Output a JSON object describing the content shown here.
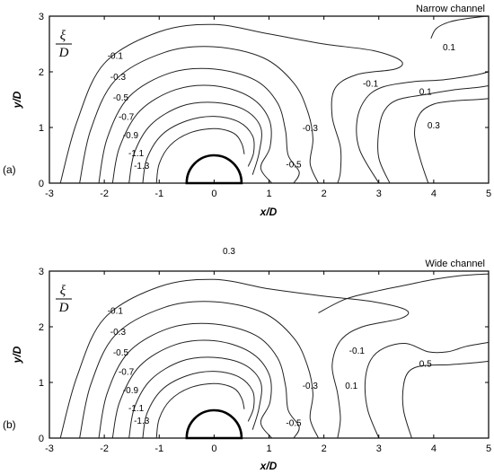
{
  "chart_data": [
    {
      "type": "contour",
      "panel": "(a)",
      "title": "Narrow channel",
      "quantity": {
        "numerator": "ξ",
        "denominator": "D"
      },
      "xlabel": "x/D",
      "ylabel": "y/D",
      "xlim": [
        -3,
        5
      ],
      "ylim": [
        0,
        3
      ],
      "xticks": [
        "-3",
        "-2",
        "-1",
        "0",
        "1",
        "2",
        "3",
        "4",
        "5"
      ],
      "yticks": [
        "0",
        "1",
        "2",
        "3"
      ],
      "cylinder": {
        "center": [
          0,
          0
        ],
        "radius": 0.5
      },
      "contours": [
        {
          "level": "-1.3",
          "label_at": [
            -1.32,
            0.32
          ],
          "points": [
            [
              -1.05,
              0
            ],
            [
              -1.0,
              0.35
            ],
            [
              -0.8,
              0.68
            ],
            [
              -0.45,
              0.9
            ],
            [
              0,
              0.98
            ],
            [
              0.35,
              0.9
            ],
            [
              0.5,
              0.72
            ],
            [
              0.55,
              0.52
            ]
          ]
        },
        {
          "level": "-1.1",
          "label_at": [
            -1.42,
            0.55
          ],
          "points": [
            [
              -1.3,
              0
            ],
            [
              -1.22,
              0.45
            ],
            [
              -0.95,
              0.87
            ],
            [
              -0.5,
              1.12
            ],
            [
              0,
              1.2
            ],
            [
              0.45,
              1.1
            ],
            [
              0.7,
              0.85
            ],
            [
              0.72,
              0.55
            ],
            [
              0.62,
              0.3
            ]
          ]
        },
        {
          "level": "-0.9",
          "label_at": [
            -1.52,
            0.87
          ],
          "points": [
            [
              -1.55,
              0
            ],
            [
              -1.45,
              0.55
            ],
            [
              -1.15,
              1.05
            ],
            [
              -0.6,
              1.38
            ],
            [
              0,
              1.45
            ],
            [
              0.55,
              1.32
            ],
            [
              0.85,
              1.0
            ],
            [
              0.82,
              0.55
            ],
            [
              0.7,
              0.15
            ]
          ]
        },
        {
          "level": "-0.7",
          "label_at": [
            -1.6,
            1.2
          ],
          "points": [
            [
              -1.85,
              0
            ],
            [
              -1.72,
              0.65
            ],
            [
              -1.35,
              1.3
            ],
            [
              -0.7,
              1.68
            ],
            [
              0,
              1.75
            ],
            [
              0.65,
              1.55
            ],
            [
              1.0,
              1.15
            ],
            [
              1.02,
              0.65
            ],
            [
              0.85,
              0.28
            ],
            [
              1.05,
              0
            ]
          ]
        },
        {
          "level": "-0.5",
          "label_at": [
            -1.7,
            1.55
          ],
          "points": [
            [
              -2.1,
              0
            ],
            [
              -1.95,
              0.8
            ],
            [
              -1.55,
              1.55
            ],
            [
              -0.8,
              1.98
            ],
            [
              0,
              2.05
            ],
            [
              0.75,
              1.85
            ],
            [
              1.15,
              1.45
            ],
            [
              1.3,
              0.95
            ],
            [
              1.35,
              0.5
            ],
            [
              1.55,
              0.2
            ],
            [
              1.45,
              0
            ]
          ]
        },
        {
          "level": "-0.3",
          "label_at": [
            -1.75,
            1.92
          ],
          "points": [
            [
              -2.45,
              0
            ],
            [
              -2.25,
              0.95
            ],
            [
              -1.8,
              1.85
            ],
            [
              -0.9,
              2.35
            ],
            [
              0,
              2.45
            ],
            [
              0.9,
              2.25
            ],
            [
              1.45,
              1.8
            ],
            [
              1.7,
              1.3
            ],
            [
              1.8,
              0.8
            ],
            [
              1.75,
              0.35
            ],
            [
              1.9,
              0
            ]
          ]
        },
        {
          "level": "-0.1",
          "label_at": [
            -1.8,
            2.3
          ],
          "points": [
            [
              -2.8,
              0
            ],
            [
              -2.5,
              1.1
            ],
            [
              -2.0,
              2.15
            ],
            [
              -1.0,
              2.72
            ],
            [
              0,
              2.85
            ],
            [
              1.0,
              2.68
            ],
            [
              2.0,
              2.5
            ],
            [
              2.9,
              2.38
            ],
            [
              3.4,
              2.2
            ],
            [
              3.3,
              2.05
            ],
            [
              2.6,
              1.95
            ],
            [
              2.2,
              1.7
            ],
            [
              2.15,
              1.2
            ],
            [
              2.3,
              0.65
            ],
            [
              2.3,
              0.2
            ],
            [
              2.25,
              0
            ]
          ]
        },
        {
          "level": "-0.1",
          "label_at": [
            2.85,
            1.8
          ],
          "points": [
            [
              3.0,
              0
            ],
            [
              2.65,
              0.6
            ],
            [
              2.6,
              1.1
            ],
            [
              2.75,
              1.5
            ],
            [
              3.05,
              1.72
            ],
            [
              3.6,
              1.82
            ],
            [
              4.1,
              1.85
            ],
            [
              4.5,
              1.9
            ],
            [
              4.8,
              1.95
            ],
            [
              5,
              2.0
            ]
          ]
        },
        {
          "level": "0.1",
          "label_at": [
            3.85,
            1.65
          ],
          "points": [
            [
              3.2,
              0
            ],
            [
              3.0,
              0.45
            ],
            [
              3.0,
              0.95
            ],
            [
              3.1,
              1.3
            ],
            [
              3.35,
              1.5
            ],
            [
              3.9,
              1.6
            ],
            [
              4.4,
              1.68
            ],
            [
              4.8,
              1.72
            ],
            [
              5,
              1.75
            ]
          ]
        },
        {
          "level": "0.3",
          "label_at": [
            4.0,
            1.05
          ],
          "points": [
            [
              3.9,
              0
            ],
            [
              3.75,
              0.45
            ],
            [
              3.65,
              0.9
            ],
            [
              3.75,
              1.25
            ],
            [
              4.0,
              1.42
            ],
            [
              4.4,
              1.48
            ],
            [
              4.75,
              1.5
            ],
            [
              5,
              1.52
            ]
          ]
        },
        {
          "level": "0.1",
          "label_at": [
            4.28,
            2.45
          ],
          "points": [
            [
              3.95,
              2.6
            ],
            [
              4.05,
              2.78
            ],
            [
              4.3,
              2.9
            ],
            [
              4.7,
              2.97
            ],
            [
              5,
              3.0
            ]
          ]
        },
        {
          "level": "-0.3",
          "label_at": [
            1.75,
            1.0
          ],
          "points": []
        },
        {
          "level": "-0.5",
          "label_at": [
            1.45,
            0.35
          ],
          "points": []
        }
      ]
    },
    {
      "type": "contour",
      "panel": "(b)",
      "title": "Wide channel",
      "quantity": {
        "numerator": "ξ",
        "denominator": "D"
      },
      "xlabel": "x/D",
      "ylabel": "y/D",
      "xlim": [
        -3,
        5
      ],
      "ylim": [
        0,
        3
      ],
      "xticks": [
        "-3",
        "-2",
        "-1",
        "0",
        "1",
        "2",
        "3",
        "4",
        "5"
      ],
      "yticks": [
        "0",
        "1",
        "2",
        "3"
      ],
      "cylinder": {
        "center": [
          0,
          0
        ],
        "radius": 0.5
      },
      "contours": [
        {
          "level": "-1.3",
          "label_at": [
            -1.32,
            0.32
          ],
          "points": [
            [
              -1.05,
              0
            ],
            [
              -1.0,
              0.35
            ],
            [
              -0.8,
              0.68
            ],
            [
              -0.45,
              0.9
            ],
            [
              0,
              0.98
            ],
            [
              0.35,
              0.9
            ],
            [
              0.5,
              0.72
            ],
            [
              0.55,
              0.52
            ]
          ]
        },
        {
          "level": "-1.1",
          "label_at": [
            -1.42,
            0.55
          ],
          "points": [
            [
              -1.3,
              0
            ],
            [
              -1.22,
              0.45
            ],
            [
              -0.95,
              0.87
            ],
            [
              -0.5,
              1.12
            ],
            [
              0,
              1.2
            ],
            [
              0.45,
              1.1
            ],
            [
              0.7,
              0.85
            ],
            [
              0.72,
              0.55
            ],
            [
              0.62,
              0.3
            ]
          ]
        },
        {
          "level": "-0.9",
          "label_at": [
            -1.52,
            0.87
          ],
          "points": [
            [
              -1.55,
              0
            ],
            [
              -1.45,
              0.55
            ],
            [
              -1.15,
              1.05
            ],
            [
              -0.6,
              1.38
            ],
            [
              0,
              1.45
            ],
            [
              0.55,
              1.32
            ],
            [
              0.85,
              1.0
            ],
            [
              0.82,
              0.55
            ],
            [
              0.7,
              0.15
            ]
          ]
        },
        {
          "level": "-0.7",
          "label_at": [
            -1.6,
            1.2
          ],
          "points": [
            [
              -1.85,
              0
            ],
            [
              -1.72,
              0.65
            ],
            [
              -1.35,
              1.3
            ],
            [
              -0.7,
              1.68
            ],
            [
              0,
              1.75
            ],
            [
              0.65,
              1.55
            ],
            [
              1.0,
              1.15
            ],
            [
              1.02,
              0.65
            ],
            [
              0.85,
              0.28
            ],
            [
              1.05,
              0
            ]
          ]
        },
        {
          "level": "-0.5",
          "label_at": [
            -1.7,
            1.55
          ],
          "points": [
            [
              -2.1,
              0
            ],
            [
              -1.95,
              0.8
            ],
            [
              -1.55,
              1.55
            ],
            [
              -0.8,
              1.98
            ],
            [
              0,
              2.05
            ],
            [
              0.75,
              1.85
            ],
            [
              1.15,
              1.45
            ],
            [
              1.3,
              0.95
            ],
            [
              1.35,
              0.5
            ],
            [
              1.55,
              0.2
            ],
            [
              1.45,
              0
            ]
          ]
        },
        {
          "level": "-0.3",
          "label_at": [
            -1.75,
            1.92
          ],
          "points": [
            [
              -2.45,
              0
            ],
            [
              -2.25,
              0.95
            ],
            [
              -1.8,
              1.85
            ],
            [
              -0.9,
              2.35
            ],
            [
              0,
              2.45
            ],
            [
              0.9,
              2.25
            ],
            [
              1.45,
              1.8
            ],
            [
              1.7,
              1.3
            ],
            [
              1.8,
              0.8
            ],
            [
              1.75,
              0.35
            ],
            [
              1.9,
              0
            ]
          ]
        },
        {
          "level": "-0.1",
          "label_at": [
            -1.8,
            2.3
          ],
          "points": [
            [
              -2.8,
              0
            ],
            [
              -2.5,
              1.1
            ],
            [
              -2.0,
              2.15
            ],
            [
              -1.0,
              2.72
            ],
            [
              0,
              2.85
            ],
            [
              1.0,
              2.68
            ],
            [
              2.0,
              2.55
            ],
            [
              2.9,
              2.45
            ],
            [
              3.5,
              2.3
            ],
            [
              3.4,
              2.15
            ],
            [
              2.7,
              2.0
            ],
            [
              2.3,
              1.75
            ],
            [
              2.15,
              1.3
            ],
            [
              2.25,
              0.8
            ],
            [
              2.3,
              0.35
            ],
            [
              2.25,
              0
            ]
          ]
        },
        {
          "level": "0.1",
          "label_at": [
            2.5,
            0.95
          ],
          "points": [
            [
              3.0,
              0
            ],
            [
              2.8,
              0.5
            ],
            [
              2.75,
              1.0
            ],
            [
              2.85,
              1.4
            ],
            [
              3.1,
              1.62
            ],
            [
              3.5,
              1.7
            ],
            [
              3.9,
              1.55
            ],
            [
              4.25,
              1.55
            ],
            [
              4.6,
              1.65
            ],
            [
              5,
              1.72
            ]
          ]
        },
        {
          "level": "0.5",
          "label_at": [
            3.85,
            1.35
          ],
          "points": [
            [
              3.6,
              0
            ],
            [
              3.45,
              0.5
            ],
            [
              3.45,
              0.95
            ],
            [
              3.55,
              1.2
            ],
            [
              3.8,
              1.3
            ],
            [
              4.3,
              1.32
            ],
            [
              4.7,
              1.35
            ],
            [
              5,
              1.38
            ]
          ]
        },
        {
          "level": "",
          "label_at": null,
          "points": [
            [
              1.9,
              2.25
            ],
            [
              2.4,
              2.5
            ],
            [
              3.0,
              2.65
            ],
            [
              3.5,
              2.75
            ],
            [
              4.0,
              2.85
            ],
            [
              4.5,
              2.92
            ],
            [
              5,
              2.95
            ]
          ]
        },
        {
          "level": "-0.1",
          "label_at": [
            2.6,
            1.58
          ],
          "points": []
        },
        {
          "level": "-0.3",
          "label_at": [
            1.75,
            0.95
          ],
          "points": []
        },
        {
          "level": "-0.5",
          "label_at": [
            1.45,
            0.28
          ],
          "points": []
        }
      ]
    }
  ],
  "stray_label": "0.3"
}
